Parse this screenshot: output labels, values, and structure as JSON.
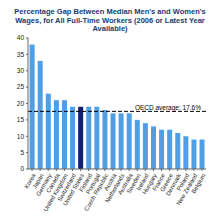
{
  "chart_data": {
    "type": "bar",
    "title": "Percentage Gap Between Median Men's and Women's Wages, for All Full-Time Workers (2006 or Latest Year Available)",
    "categories": [
      "Korea",
      "Japan",
      "Germany",
      "Canada",
      "United Kingdom",
      "Switzerland",
      "United States",
      "Finland",
      "Portugal",
      "Czech Republic",
      "Austria",
      "Netherlands",
      "Australia",
      "Sweden",
      "Ireland",
      "Hungary",
      "France",
      "Greece",
      "Denmark",
      "Poland",
      "New Zealand",
      "Belgium"
    ],
    "values": [
      38,
      33,
      23,
      21,
      21,
      19,
      19,
      19,
      19,
      18,
      17,
      17,
      17,
      15,
      14,
      13,
      12,
      12,
      11,
      10,
      9,
      9
    ],
    "colors": [
      "#4f9fe6",
      "#4f9fe6",
      "#4f9fe6",
      "#4f9fe6",
      "#4f9fe6",
      "#4f9fe6",
      "#10206e",
      "#4f9fe6",
      "#4f9fe6",
      "#4f9fe6",
      "#4f9fe6",
      "#4f9fe6",
      "#4f9fe6",
      "#4f9fe6",
      "#4f9fe6",
      "#4f9fe6",
      "#4f9fe6",
      "#4f9fe6",
      "#4f9fe6",
      "#4f9fe6",
      "#4f9fe6",
      "#4f9fe6"
    ],
    "ylim": [
      0,
      40
    ],
    "yticks": [
      0,
      5,
      10,
      15,
      20,
      25,
      30,
      35,
      40
    ],
    "grid": false,
    "annotations": [
      {
        "y": 17.6,
        "text": "OECD average: 17.6%",
        "line_style": "dashed"
      }
    ]
  }
}
